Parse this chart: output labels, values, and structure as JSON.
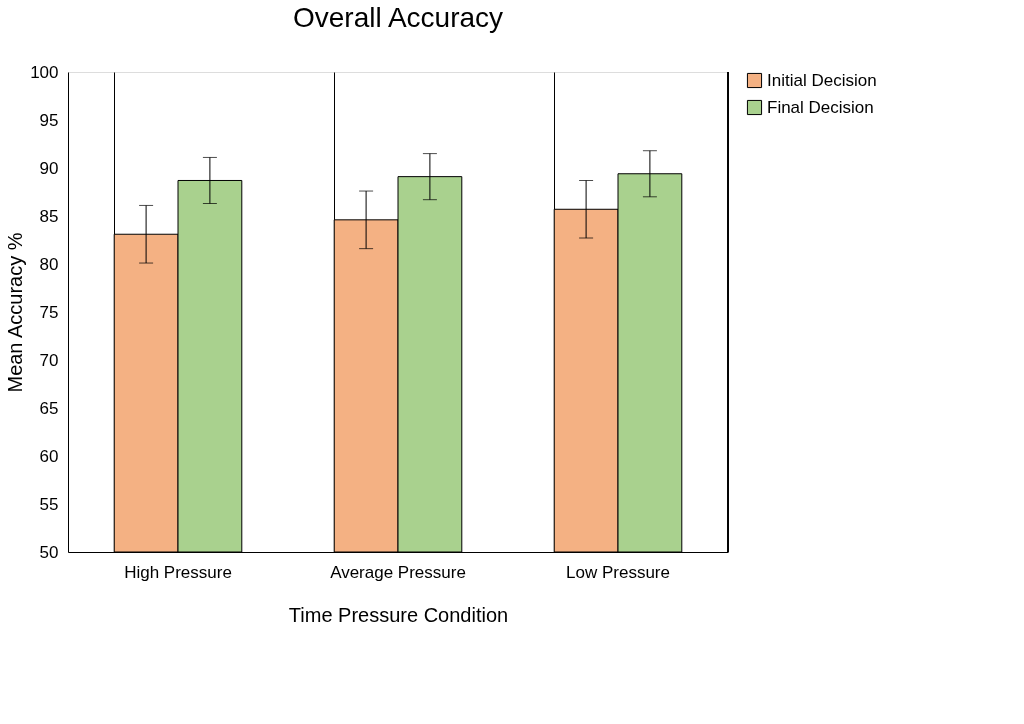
{
  "chart_data": {
    "type": "bar",
    "title": "Overall Accuracy",
    "xlabel": "Time Pressure Condition",
    "ylabel": "Mean Accuracy %",
    "categories": [
      "High Pressure",
      "Average Pressure",
      "Low Pressure"
    ],
    "series": [
      {
        "name": "Initial Decision",
        "color": "#f4b183",
        "values": [
          83.1,
          84.6,
          85.7
        ],
        "errors": [
          3.0,
          3.0,
          3.0
        ]
      },
      {
        "name": "Final Decision",
        "color": "#a9d18e",
        "values": [
          88.7,
          89.1,
          89.4
        ],
        "errors": [
          2.4,
          2.4,
          2.4
        ]
      }
    ],
    "ylim": [
      50,
      100
    ],
    "yticks": [
      50,
      55,
      60,
      65,
      70,
      75,
      80,
      85,
      90,
      95,
      100
    ],
    "grid": "x",
    "legend": "right"
  }
}
